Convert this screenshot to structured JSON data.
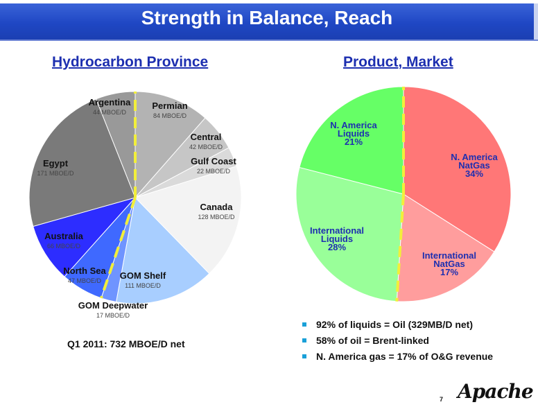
{
  "title": "Strength in Balance, Reach",
  "left_heading": "Hydrocarbon Province",
  "right_heading": "Product, Market",
  "chart_data": [
    {
      "type": "pie",
      "title": "Hydrocarbon Province",
      "unit": "MBOE/D",
      "slices": [
        {
          "name": "Permian",
          "value": 84,
          "label": "84 MBOE/D",
          "color": "#b3b3b3"
        },
        {
          "name": "Central",
          "value": 42,
          "label": "42 MBOE/D",
          "color": "#c6c6c6"
        },
        {
          "name": "Gulf Coast",
          "value": 22,
          "label": "22 MBOE/D",
          "color": "#dadada"
        },
        {
          "name": "Canada",
          "value": 128,
          "label": "128 MBOE/D",
          "color": "#f3f3f3"
        },
        {
          "name": "GOM Shelf",
          "value": 111,
          "label": "111 MBOE/D",
          "color": "#a8ceff"
        },
        {
          "name": "GOM Deepwater",
          "value": 17,
          "label": "17 MBOE/D",
          "color": "#6f94ff"
        },
        {
          "name": "North Sea",
          "value": 47,
          "label": "47 MBOE/D",
          "color": "#3f69ff"
        },
        {
          "name": "Australia",
          "value": 66,
          "label": "66 MBOE/D",
          "color": "#2d2dff"
        },
        {
          "name": "Egypt",
          "value": 171,
          "label": "171 MBOE/D",
          "color": "#7a7a7a"
        },
        {
          "name": "Argentina",
          "value": 44,
          "label": "44 MBOE/D",
          "color": "#999999"
        }
      ],
      "footnote": "Q1 2011: 732 MBOE/D net"
    },
    {
      "type": "pie",
      "title": "Product, Market",
      "slices": [
        {
          "name": "N. America NatGas",
          "lines": [
            "N. America",
            "NatGas"
          ],
          "value": 34,
          "label": "34%",
          "color": "#ff7777"
        },
        {
          "name": "International NatGas",
          "lines": [
            "International",
            "NatGas"
          ],
          "value": 17,
          "label": "17%",
          "color": "#ff9d9d"
        },
        {
          "name": "International Liquids",
          "lines": [
            "International",
            "Liquids"
          ],
          "value": 28,
          "label": "28%",
          "color": "#99ff99"
        },
        {
          "name": "N. America Liquids",
          "lines": [
            "N. America",
            "Liquids"
          ],
          "value": 21,
          "label": "21%",
          "color": "#66ff66"
        }
      ]
    }
  ],
  "bullets": [
    "92% of liquids = Oil (329MB/D net)",
    "58% of oil = Brent-linked",
    "N. America gas = 17% of O&G revenue"
  ],
  "page_number": "7",
  "logo_text": "Apache",
  "divider_color": "#f2ef3a",
  "bullet_color": "#1aa0d8"
}
